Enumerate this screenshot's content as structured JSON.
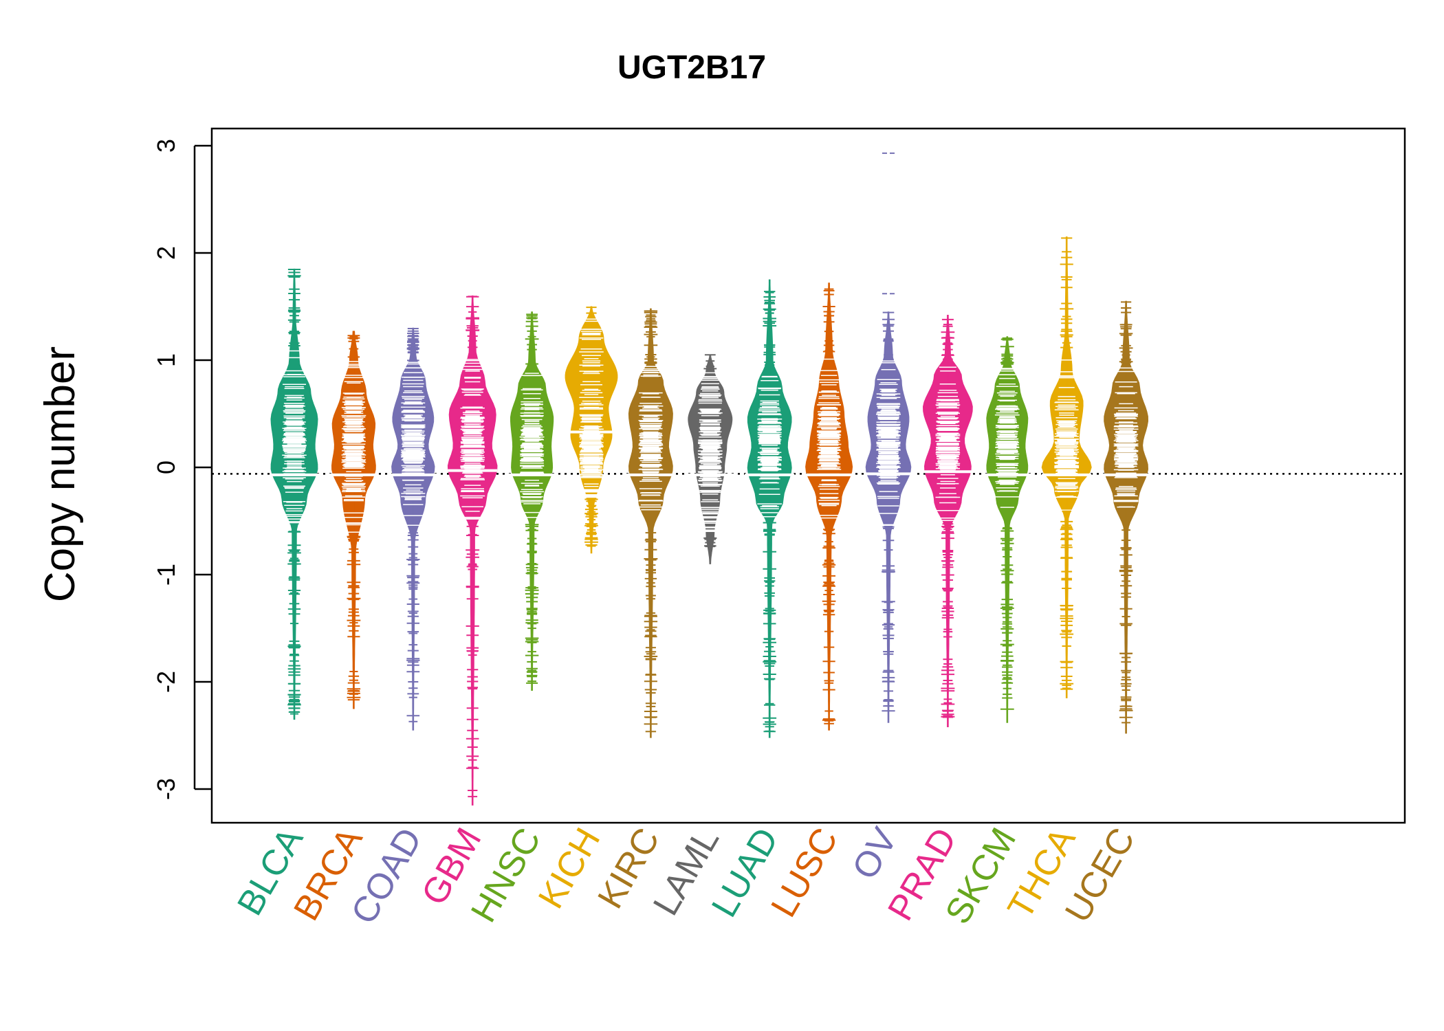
{
  "chart_data": {
    "type": "beanplot",
    "title": "UGT2B17",
    "ylabel": "Copy number",
    "xlabel": "",
    "ylim": [
      -3.35,
      3.15
    ],
    "yticks": [
      -3,
      -2,
      -1,
      0,
      1,
      2,
      3
    ],
    "reference_line": -0.06,
    "grid": false,
    "legend": "none",
    "categories": [
      "BLCA",
      "BRCA",
      "COAD",
      "GBM",
      "HNSC",
      "KICH",
      "KIRC",
      "LAML",
      "LUAD",
      "LUSC",
      "OV",
      "PRAD",
      "SKCM",
      "THCA",
      "UCEC"
    ],
    "colors": [
      "#1b9e77",
      "#d95f02",
      "#7570b3",
      "#e7298a",
      "#66a61e",
      "#e6ab02",
      "#a6761d",
      "#666666",
      "#1b9e77",
      "#d95f02",
      "#7570b3",
      "#e7298a",
      "#66a61e",
      "#e6ab02",
      "#a6761d"
    ],
    "series": [
      {
        "category": "BLCA",
        "min": -2.35,
        "max": 1.85,
        "median": -0.07,
        "density": [
          [
            -2.35,
            0.02
          ],
          [
            -0.6,
            0.08
          ],
          [
            -0.3,
            0.45
          ],
          [
            0.0,
            0.85
          ],
          [
            0.2,
            0.75
          ],
          [
            0.45,
            0.85
          ],
          [
            0.7,
            0.6
          ],
          [
            1.0,
            0.18
          ],
          [
            1.4,
            0.05
          ],
          [
            1.85,
            0.02
          ]
        ]
      },
      {
        "category": "BRCA",
        "min": -2.25,
        "max": 1.27,
        "median": -0.07,
        "density": [
          [
            -2.25,
            0.02
          ],
          [
            -0.8,
            0.07
          ],
          [
            -0.3,
            0.4
          ],
          [
            0.0,
            0.8
          ],
          [
            0.2,
            0.7
          ],
          [
            0.4,
            0.78
          ],
          [
            0.7,
            0.45
          ],
          [
            1.0,
            0.15
          ],
          [
            1.27,
            0.03
          ]
        ]
      },
      {
        "category": "COAD",
        "min": -2.45,
        "max": 1.3,
        "median": -0.07,
        "density": [
          [
            -2.45,
            0.02
          ],
          [
            -0.7,
            0.06
          ],
          [
            -0.3,
            0.45
          ],
          [
            0.0,
            0.78
          ],
          [
            0.2,
            0.55
          ],
          [
            0.45,
            0.75
          ],
          [
            0.8,
            0.45
          ],
          [
            1.05,
            0.1
          ],
          [
            1.3,
            0.02
          ]
        ]
      },
      {
        "category": "GBM",
        "min": -3.15,
        "max": 1.6,
        "median": -0.03,
        "density": [
          [
            -3.15,
            0.02
          ],
          [
            -0.6,
            0.08
          ],
          [
            -0.3,
            0.5
          ],
          [
            0.0,
            0.9
          ],
          [
            0.2,
            0.7
          ],
          [
            0.5,
            0.85
          ],
          [
            0.8,
            0.45
          ],
          [
            1.1,
            0.12
          ],
          [
            1.6,
            0.02
          ]
        ]
      },
      {
        "category": "HNSC",
        "min": -2.08,
        "max": 1.45,
        "median": -0.07,
        "density": [
          [
            -2.08,
            0.02
          ],
          [
            -0.55,
            0.08
          ],
          [
            -0.3,
            0.4
          ],
          [
            0.0,
            0.75
          ],
          [
            0.2,
            0.7
          ],
          [
            0.45,
            0.78
          ],
          [
            0.75,
            0.5
          ],
          [
            1.0,
            0.12
          ],
          [
            1.45,
            0.02
          ]
        ]
      },
      {
        "category": "KICH",
        "min": -0.8,
        "max": 1.5,
        "median": 0.33,
        "density": [
          [
            -0.8,
            0.02
          ],
          [
            -0.4,
            0.08
          ],
          [
            0.0,
            0.42
          ],
          [
            0.3,
            0.75
          ],
          [
            0.55,
            0.62
          ],
          [
            0.85,
            0.95
          ],
          [
            1.2,
            0.45
          ],
          [
            1.5,
            0.02
          ]
        ]
      },
      {
        "category": "KIRC",
        "min": -2.52,
        "max": 1.48,
        "median": -0.07,
        "density": [
          [
            -2.52,
            0.02
          ],
          [
            -0.6,
            0.08
          ],
          [
            -0.3,
            0.45
          ],
          [
            0.0,
            0.8
          ],
          [
            0.2,
            0.65
          ],
          [
            0.5,
            0.8
          ],
          [
            0.8,
            0.45
          ],
          [
            1.0,
            0.1
          ],
          [
            1.48,
            0.02
          ]
        ]
      },
      {
        "category": "LAML",
        "min": -0.9,
        "max": 1.05,
        "median": -0.07,
        "density": [
          [
            -0.9,
            0.02
          ],
          [
            -0.6,
            0.15
          ],
          [
            -0.3,
            0.35
          ],
          [
            0.0,
            0.52
          ],
          [
            0.2,
            0.6
          ],
          [
            0.45,
            0.8
          ],
          [
            0.7,
            0.5
          ],
          [
            0.9,
            0.15
          ],
          [
            1.05,
            0.02
          ]
        ]
      },
      {
        "category": "LUAD",
        "min": -2.52,
        "max": 1.75,
        "median": -0.07,
        "density": [
          [
            -2.52,
            0.02
          ],
          [
            -0.55,
            0.08
          ],
          [
            -0.3,
            0.5
          ],
          [
            0.0,
            0.8
          ],
          [
            0.2,
            0.65
          ],
          [
            0.45,
            0.8
          ],
          [
            0.75,
            0.45
          ],
          [
            1.0,
            0.12
          ],
          [
            1.75,
            0.02
          ]
        ]
      },
      {
        "category": "LUSC",
        "min": -2.45,
        "max": 1.72,
        "median": -0.07,
        "density": [
          [
            -2.45,
            0.02
          ],
          [
            -0.65,
            0.08
          ],
          [
            -0.3,
            0.45
          ],
          [
            0.0,
            0.85
          ],
          [
            0.2,
            0.7
          ],
          [
            0.5,
            0.55
          ],
          [
            0.8,
            0.35
          ],
          [
            1.1,
            0.12
          ],
          [
            1.72,
            0.02
          ]
        ]
      },
      {
        "category": "OV",
        "min": -2.38,
        "max": 1.45,
        "median": -0.06,
        "outliers": [
          1.62,
          2.93
        ],
        "density": [
          [
            -2.38,
            0.02
          ],
          [
            -0.65,
            0.07
          ],
          [
            -0.3,
            0.42
          ],
          [
            0.0,
            0.82
          ],
          [
            0.2,
            0.62
          ],
          [
            0.45,
            0.75
          ],
          [
            0.8,
            0.48
          ],
          [
            1.05,
            0.15
          ],
          [
            1.45,
            0.02
          ]
        ]
      },
      {
        "category": "PRAD",
        "min": -2.42,
        "max": 1.42,
        "median": -0.04,
        "density": [
          [
            -2.42,
            0.02
          ],
          [
            -0.6,
            0.07
          ],
          [
            -0.3,
            0.5
          ],
          [
            0.0,
            0.85
          ],
          [
            0.25,
            0.6
          ],
          [
            0.55,
            0.9
          ],
          [
            0.85,
            0.5
          ],
          [
            1.05,
            0.1
          ],
          [
            1.42,
            0.02
          ]
        ]
      },
      {
        "category": "SKCM",
        "min": -2.38,
        "max": 1.22,
        "median": -0.07,
        "density": [
          [
            -2.38,
            0.02
          ],
          [
            -0.55,
            0.08
          ],
          [
            -0.3,
            0.4
          ],
          [
            0.0,
            0.75
          ],
          [
            0.2,
            0.65
          ],
          [
            0.45,
            0.75
          ],
          [
            0.75,
            0.45
          ],
          [
            1.0,
            0.1
          ],
          [
            1.22,
            0.02
          ]
        ]
      },
      {
        "category": "THCA",
        "min": -2.15,
        "max": 2.15,
        "median": -0.07,
        "density": [
          [
            -2.15,
            0.02
          ],
          [
            -0.5,
            0.06
          ],
          [
            -0.2,
            0.45
          ],
          [
            0.0,
            0.9
          ],
          [
            0.25,
            0.45
          ],
          [
            0.6,
            0.6
          ],
          [
            0.9,
            0.2
          ],
          [
            1.3,
            0.05
          ],
          [
            2.15,
            0.02
          ]
        ]
      },
      {
        "category": "UCEC",
        "min": -2.48,
        "max": 1.55,
        "median": -0.07,
        "density": [
          [
            -2.48,
            0.02
          ],
          [
            -0.6,
            0.07
          ],
          [
            -0.3,
            0.45
          ],
          [
            0.0,
            0.8
          ],
          [
            0.2,
            0.6
          ],
          [
            0.45,
            0.8
          ],
          [
            0.75,
            0.5
          ],
          [
            1.0,
            0.12
          ],
          [
            1.55,
            0.02
          ]
        ]
      }
    ]
  }
}
